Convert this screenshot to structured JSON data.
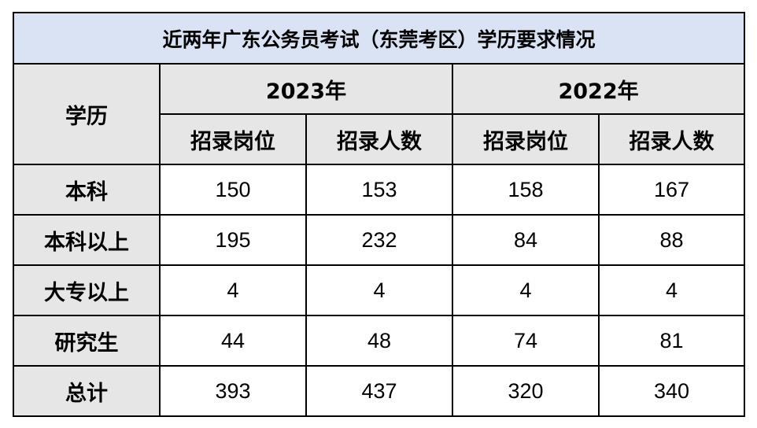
{
  "table": {
    "title": "近两年广东公务员考试（东莞考区）学历要求情况",
    "corner_label": "学历",
    "years": [
      "2023年",
      "2022年"
    ],
    "sub_headers": [
      "招录岗位",
      "招录人数",
      "招录岗位",
      "招录人数"
    ],
    "rows": [
      {
        "label": "本科",
        "values": [
          "150",
          "153",
          "158",
          "167"
        ]
      },
      {
        "label": "本科以上",
        "values": [
          "195",
          "232",
          "84",
          "88"
        ]
      },
      {
        "label": "大专以上",
        "values": [
          "4",
          "4",
          "4",
          "4"
        ]
      },
      {
        "label": "研究生",
        "values": [
          "44",
          "48",
          "74",
          "81"
        ]
      },
      {
        "label": "总计",
        "values": [
          "393",
          "437",
          "320",
          "340"
        ]
      }
    ]
  },
  "colors": {
    "title_background": "#dae3f3",
    "header_background": "#e7e6e6",
    "border": "#000000"
  }
}
